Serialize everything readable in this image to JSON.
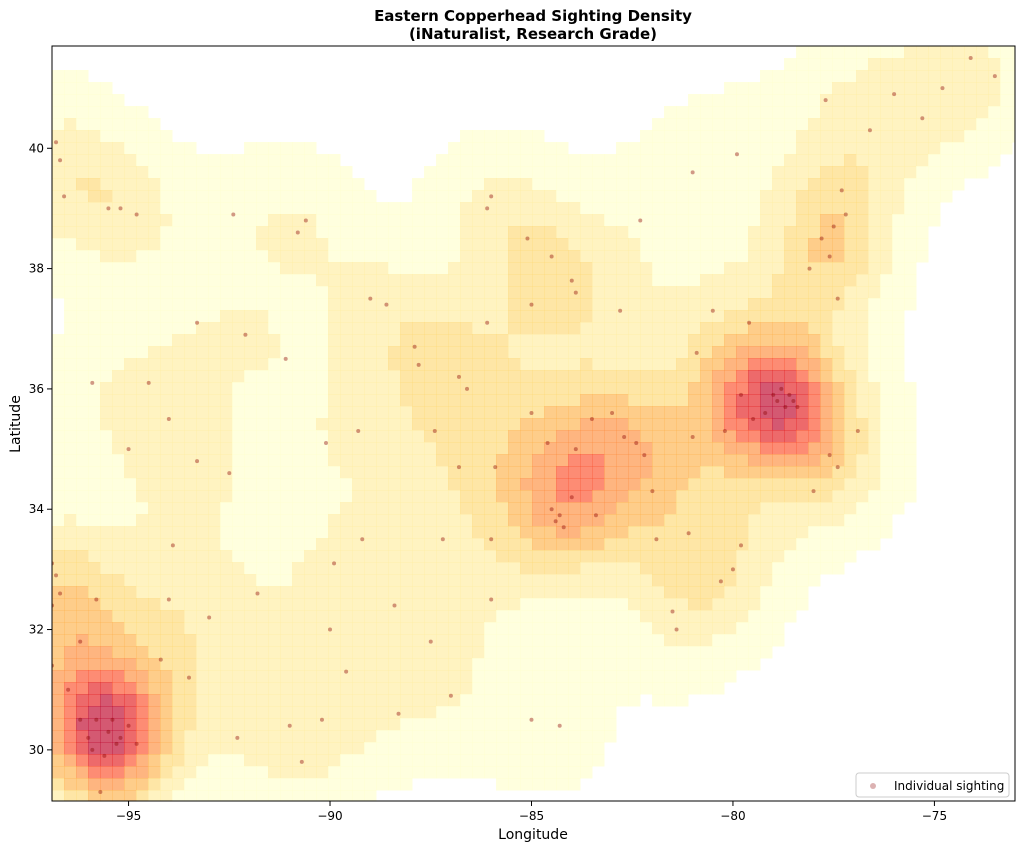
{
  "chart_data": {
    "type": "scatter-density",
    "title": "Eastern Copperhead Sighting Density",
    "subtitle": "(iNaturalist, Research Grade)",
    "x_label": "Longitude",
    "y_label": "Latitude",
    "xlim": [
      -96.9,
      -73.0
    ],
    "ylim": [
      29.15,
      41.7
    ],
    "xticks": [
      {
        "value": -95,
        "label": "−95"
      },
      {
        "value": -90,
        "label": "−90"
      },
      {
        "value": -85,
        "label": "−85"
      },
      {
        "value": -80,
        "label": "−80"
      },
      {
        "value": -75,
        "label": "−75"
      }
    ],
    "yticks": [
      30,
      32,
      34,
      36,
      38,
      40
    ],
    "legend": "lower right",
    "density_colors": [
      "#ffffcc",
      "#ffeda0",
      "#fed976",
      "#feb24c",
      "#fd8d3c",
      "#fc4e2a",
      "#e31a1c",
      "#bd0026"
    ],
    "series": [
      {
        "name": "Individual sighting",
        "color": "#8b0000",
        "x": [
          -78.9,
          -78.6,
          -78.7,
          -79.0,
          -78.5,
          -79.2,
          -78.8,
          -78.4,
          -79.5,
          -80.2,
          -81.0,
          -79.8,
          -95.5,
          -95.3,
          -95.8,
          -96.0,
          -95.4,
          -95.2,
          -95.9,
          -95.6,
          -96.2,
          -95.0,
          -95.7,
          -94.8,
          -77.5,
          -77.2,
          -77.8,
          -77.3,
          -77.6,
          -78.1,
          -77.4,
          -84.3,
          -84.2,
          -84.5,
          -84.4,
          -84.0,
          -83.4,
          -82.7,
          -83.0,
          -82.4,
          -83.5,
          -82.2,
          -83.9,
          -84.6,
          -96.8,
          -96.9,
          -96.7,
          -96.9,
          -96.2,
          -95.8,
          -95.2,
          -94.8,
          -95.5,
          -96.6,
          -96.8,
          -96.7,
          -89.0,
          -88.6,
          -90.8,
          -90.6,
          -92.4,
          -87.9,
          -87.8,
          -86.8,
          -86.6,
          -84.0,
          -83.9,
          -85.0,
          -86.1,
          -84.5,
          -86.0,
          -86.1,
          -85.1,
          -82.3,
          -81.0,
          -79.9,
          -76.0,
          -75.3,
          -74.1,
          -73.5,
          -74.8,
          -76.6,
          -77.7,
          -80.0,
          -80.3,
          -79.8,
          -81.5,
          -81.4,
          -81.1,
          -82.0,
          -81.9,
          -77.4,
          -77.6,
          -76.9,
          -78.0,
          -93.3,
          -92.5,
          -94.5,
          -94.0,
          -95.9,
          -95.0,
          -93.9,
          -89.2,
          -87.2,
          -86.0,
          -86.8,
          -88.4,
          -89.6,
          -87.5,
          -85.0,
          -87.0,
          -90.2,
          -91.0,
          -92.3,
          -93.5,
          -88.3,
          -84.3,
          -90.7,
          -94.0,
          -93.0,
          -91.8,
          -90.0,
          -96.9,
          -96.5,
          -94.2,
          -89.3,
          -90.1,
          -89.9,
          -91.1,
          -92.1,
          -93.3,
          -85.9,
          -85.0,
          -80.5,
          -79.6,
          -80.9,
          -82.8,
          -86.0,
          -87.4
        ],
        "y": [
          35.8,
          35.9,
          35.7,
          35.9,
          35.8,
          35.6,
          36.0,
          35.7,
          35.5,
          35.3,
          35.2,
          35.9,
          30.3,
          30.1,
          30.5,
          30.2,
          30.5,
          30.2,
          30.0,
          29.9,
          30.5,
          30.4,
          29.3,
          30.1,
          38.7,
          38.9,
          38.5,
          39.3,
          38.2,
          38.0,
          37.5,
          33.9,
          33.7,
          34.0,
          33.8,
          34.2,
          33.9,
          35.2,
          35.6,
          35.1,
          35.5,
          34.9,
          35.0,
          35.1,
          32.9,
          33.1,
          32.6,
          32.4,
          31.8,
          32.5,
          39.0,
          38.9,
          39.0,
          39.2,
          40.1,
          39.8,
          37.5,
          37.4,
          38.6,
          38.8,
          38.9,
          36.7,
          36.4,
          36.2,
          36.0,
          37.8,
          37.6,
          37.4,
          37.1,
          38.2,
          39.2,
          39.0,
          38.5,
          38.8,
          39.6,
          39.9,
          40.9,
          40.5,
          41.5,
          41.2,
          41.0,
          40.3,
          40.8,
          33.0,
          32.8,
          33.4,
          32.3,
          32.0,
          33.6,
          34.3,
          33.5,
          34.7,
          34.9,
          35.3,
          34.3,
          34.8,
          34.6,
          36.1,
          35.5,
          36.1,
          35.0,
          33.4,
          33.5,
          33.5,
          32.5,
          34.7,
          32.4,
          31.3,
          31.8,
          30.5,
          30.9,
          30.5,
          30.4,
          30.2,
          31.2,
          30.6,
          30.4,
          29.8,
          32.5,
          32.2,
          32.6,
          32.0,
          31.4,
          31.0,
          31.5,
          35.3,
          35.1,
          33.1,
          36.5,
          36.9,
          37.1,
          34.7,
          35.6,
          37.3,
          37.1,
          36.6,
          37.3,
          33.5,
          35.3
        ]
      }
    ]
  }
}
